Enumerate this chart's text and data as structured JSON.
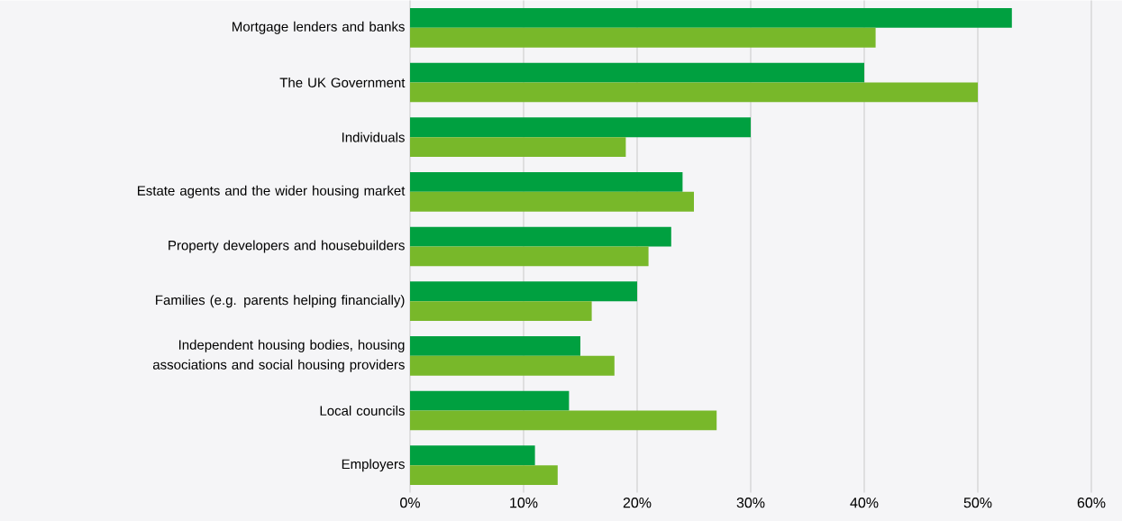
{
  "chart_data": {
    "type": "bar",
    "orientation": "horizontal",
    "categories": [
      "Mortgage lenders and banks",
      "The UK Government",
      "Individuals",
      "Estate agents and the wider housing market",
      "Property developers and housebuilders",
      "Families (e.g. parents helping financially)",
      "Independent housing bodies, housing associations and social housing providers",
      "Local councils",
      "Employers"
    ],
    "series": [
      {
        "color": "#00a040",
        "values": [
          53,
          40,
          30,
          24,
          23,
          20,
          15,
          14,
          11
        ]
      },
      {
        "color": "#78b82a",
        "values": [
          41,
          50,
          19,
          25,
          21,
          16,
          18,
          27,
          13
        ]
      }
    ],
    "xlim": [
      0,
      60
    ],
    "xticks": [
      {
        "value": 0,
        "label": "0%"
      },
      {
        "value": 10,
        "label": "10%"
      },
      {
        "value": 20,
        "label": "20%"
      },
      {
        "value": 30,
        "label": "30%"
      },
      {
        "value": 40,
        "label": "40%"
      },
      {
        "value": 50,
        "label": "50%"
      },
      {
        "value": 60,
        "label": "60%"
      }
    ],
    "grid": "x"
  }
}
